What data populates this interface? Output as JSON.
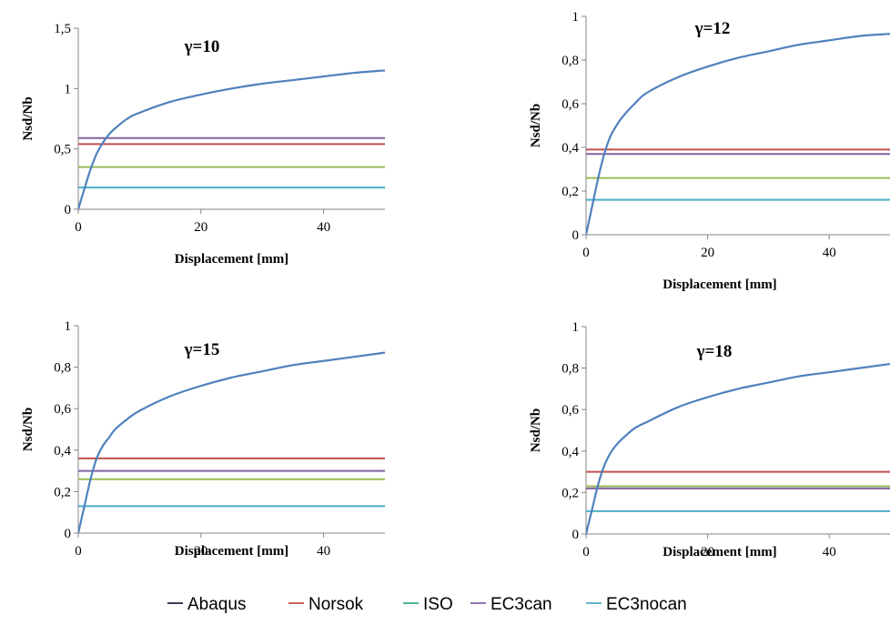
{
  "colors": {
    "Abaqus": "#4f81bd",
    "Norsok": "#c0504d",
    "ISO": "#9bbb59",
    "EC3can": "#8064a2",
    "EC3nocan": "#4bacc6",
    "legend_Abaqus": "#1f1f3f",
    "legend_ISO": "#3aa58c"
  },
  "legend": {
    "position": "bottom",
    "entries": [
      "Abaqus",
      "Norsok",
      "ISO",
      "EC3can",
      "EC3nocan"
    ]
  },
  "chart_data": [
    {
      "type": "line",
      "title": "γ=10",
      "xlabel": "Displacement [mm]",
      "ylabel": "Nsd/Nb",
      "xlim": [
        0,
        50
      ],
      "ylim": [
        0,
        1.5
      ],
      "xticks": [
        "0",
        "20",
        "40"
      ],
      "xtick_values": [
        0,
        20,
        40
      ],
      "yticks": [
        "0",
        "0,5",
        "1",
        "1,5"
      ],
      "ytick_values": [
        0,
        0.5,
        1,
        1.5
      ],
      "grid": false,
      "abaqus": {
        "x": [
          0,
          1,
          2,
          3,
          4,
          5,
          6,
          8,
          10,
          15,
          20,
          25,
          30,
          35,
          40,
          45,
          50
        ],
        "y": [
          0,
          0.17,
          0.33,
          0.46,
          0.55,
          0.62,
          0.67,
          0.75,
          0.8,
          0.89,
          0.95,
          1.0,
          1.04,
          1.07,
          1.1,
          1.13,
          1.15
        ]
      },
      "levels": {
        "Norsok": 0.54,
        "ISO": 0.35,
        "EC3can": 0.59,
        "EC3nocan": 0.18
      }
    },
    {
      "type": "line",
      "title": "γ=12",
      "xlabel": "Displacement [mm]",
      "ylabel": "Nsd/Nb",
      "xlim": [
        0,
        50
      ],
      "ylim": [
        0,
        1
      ],
      "xticks": [
        "0",
        "20",
        "40"
      ],
      "xtick_values": [
        0,
        20,
        40
      ],
      "yticks": [
        "0",
        "0,2",
        "0,4",
        "0,6",
        "0,8",
        "1"
      ],
      "ytick_values": [
        0,
        0.2,
        0.4,
        0.6,
        0.8,
        1
      ],
      "grid": false,
      "abaqus": {
        "x": [
          0,
          1,
          2,
          3,
          4,
          5,
          6,
          8,
          10,
          15,
          20,
          25,
          30,
          35,
          40,
          45,
          50
        ],
        "y": [
          0,
          0.13,
          0.26,
          0.37,
          0.45,
          0.5,
          0.54,
          0.6,
          0.65,
          0.72,
          0.77,
          0.81,
          0.84,
          0.87,
          0.89,
          0.91,
          0.92
        ]
      },
      "levels": {
        "Norsok": 0.39,
        "ISO": 0.26,
        "EC3can": 0.37,
        "EC3nocan": 0.16
      }
    },
    {
      "type": "line",
      "title": "γ=15",
      "xlabel": "Displacement [mm]",
      "ylabel": "Nsd/Nb",
      "xlim": [
        0,
        50
      ],
      "ylim": [
        0,
        1
      ],
      "xticks": [
        "0",
        "20",
        "40"
      ],
      "xtick_values": [
        0,
        20,
        40
      ],
      "yticks": [
        "0",
        "0,2",
        "0,4",
        "0,6",
        "0,8",
        "1"
      ],
      "ytick_values": [
        0,
        0.2,
        0.4,
        0.6,
        0.8,
        1
      ],
      "grid": false,
      "abaqus": {
        "x": [
          0,
          1,
          2,
          3,
          4,
          5,
          6,
          8,
          10,
          15,
          20,
          25,
          30,
          35,
          40,
          45,
          50
        ],
        "y": [
          0,
          0.13,
          0.26,
          0.36,
          0.42,
          0.46,
          0.5,
          0.55,
          0.59,
          0.66,
          0.71,
          0.75,
          0.78,
          0.81,
          0.83,
          0.85,
          0.87
        ]
      },
      "levels": {
        "Norsok": 0.36,
        "ISO": 0.26,
        "EC3can": 0.3,
        "EC3nocan": 0.13
      }
    },
    {
      "type": "line",
      "title": "γ=18",
      "xlabel": "Displacement [mm]",
      "ylabel": "Nsd/Nb",
      "xlim": [
        0,
        50
      ],
      "ylim": [
        0,
        1
      ],
      "xticks": [
        "0",
        "20",
        "40"
      ],
      "xtick_values": [
        0,
        20,
        40
      ],
      "yticks": [
        "0",
        "0,2",
        "0,4",
        "0,6",
        "0,8",
        "1"
      ],
      "ytick_values": [
        0,
        0.2,
        0.4,
        0.6,
        0.8,
        1
      ],
      "grid": false,
      "abaqus": {
        "x": [
          0,
          1,
          2,
          3,
          4,
          5,
          6,
          8,
          10,
          15,
          20,
          25,
          30,
          35,
          40,
          45,
          50
        ],
        "y": [
          0,
          0.12,
          0.24,
          0.33,
          0.39,
          0.43,
          0.46,
          0.51,
          0.54,
          0.61,
          0.66,
          0.7,
          0.73,
          0.76,
          0.78,
          0.8,
          0.82
        ]
      },
      "levels": {
        "Norsok": 0.3,
        "ISO": 0.23,
        "EC3can": 0.22,
        "EC3nocan": 0.11
      }
    }
  ]
}
